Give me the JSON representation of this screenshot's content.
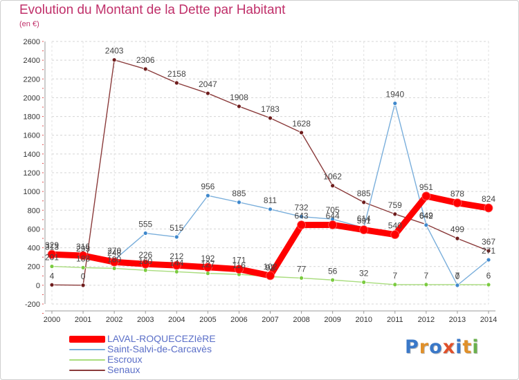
{
  "title": "Evolution du Montant de la Dette par Habitant",
  "unit_label": "(en €)",
  "logo": "Proxiti",
  "chart_data": {
    "type": "line",
    "x": [
      "2000",
      "2001",
      "2002",
      "2003",
      "2004",
      "2005",
      "2006",
      "2007",
      "2008",
      "2009",
      "2010",
      "2011",
      "2012",
      "2013",
      "2014"
    ],
    "ylim": [
      -200,
      2600
    ],
    "yticks": [
      -200,
      0,
      200,
      400,
      600,
      800,
      1000,
      1200,
      1400,
      1600,
      1800,
      2000,
      2200,
      2400,
      2600
    ],
    "grid": "horizontal dashed",
    "legend_position": "bottom-left",
    "series": [
      {
        "name": "LAVAL-ROQUECEZIèRE",
        "color": "#ff0000",
        "marker": "#ff0000",
        "values": [
          329,
          316,
          248,
          226,
          212,
          192,
          171,
          102,
          643,
          644,
          591,
          540,
          951,
          878,
          824
        ]
      },
      {
        "name": "Saint-Salvi-de-Carcavès",
        "color": "#79aedb",
        "marker": "#3f88cc",
        "values": [
          313,
          295,
          270,
          555,
          515,
          956,
          885,
          811,
          732,
          705,
          614,
          1940,
          642,
          0,
          271
        ]
      },
      {
        "name": "Escroux",
        "color": "#a8dc7c",
        "marker": "#7acb3f",
        "values": [
          201,
          188,
          180,
          160,
          144,
          127,
          116,
          92,
          77,
          56,
          32,
          7,
          7,
          7,
          6
        ]
      },
      {
        "name": "Senaux",
        "color": "#8a3a3a",
        "marker": "#6e1c1c",
        "values": [
          4,
          0,
          2403,
          2306,
          2158,
          2047,
          1908,
          1783,
          1628,
          1062,
          885,
          759,
          649,
          499,
          367
        ]
      }
    ]
  }
}
